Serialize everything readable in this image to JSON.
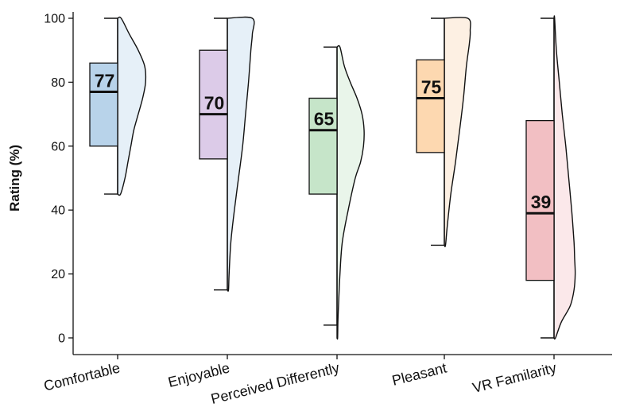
{
  "chart_data": {
    "type": "raincloud",
    "title": "",
    "xlabel": "",
    "ylabel": "Rating (%)",
    "ylim": [
      0,
      100
    ],
    "yticks": [
      0,
      20,
      40,
      60,
      80,
      100
    ],
    "grid": false,
    "legend": "none",
    "categories": [
      {
        "name": "Comfortable",
        "box_color": "#b8d3ea",
        "violin_color": "#e6f0f8",
        "stats": {
          "min": 45,
          "q1": 60,
          "median": 77,
          "q3": 86,
          "max": 100
        },
        "median_label": "77",
        "density": [
          [
            45,
            0.1
          ],
          [
            50,
            0.25
          ],
          [
            55,
            0.35
          ],
          [
            60,
            0.45
          ],
          [
            65,
            0.55
          ],
          [
            70,
            0.7
          ],
          [
            75,
            0.85
          ],
          [
            80,
            0.95
          ],
          [
            85,
            0.92
          ],
          [
            90,
            0.7
          ],
          [
            95,
            0.4
          ],
          [
            100,
            0.12
          ]
        ]
      },
      {
        "name": "Enjoyable",
        "box_color": "#dccbe8",
        "violin_color": "#e6f0f8",
        "stats": {
          "min": 15,
          "q1": 56,
          "median": 70,
          "q3": 90,
          "max": 100
        },
        "median_label": "70",
        "density": [
          [
            15,
            0.04
          ],
          [
            20,
            0.06
          ],
          [
            30,
            0.12
          ],
          [
            40,
            0.24
          ],
          [
            50,
            0.38
          ],
          [
            60,
            0.52
          ],
          [
            70,
            0.62
          ],
          [
            80,
            0.72
          ],
          [
            90,
            0.8
          ],
          [
            95,
            0.85
          ],
          [
            100,
            0.85
          ]
        ]
      },
      {
        "name": "Perceived Differently",
        "box_color": "#c6e5c9",
        "violin_color": "#e9f5ea",
        "stats": {
          "min": 4,
          "q1": 45,
          "median": 65,
          "q3": 75,
          "max": 91
        },
        "median_label": "65",
        "density": [
          [
            0,
            0.02
          ],
          [
            5,
            0.03
          ],
          [
            10,
            0.05
          ],
          [
            20,
            0.1
          ],
          [
            30,
            0.18
          ],
          [
            40,
            0.38
          ],
          [
            50,
            0.62
          ],
          [
            55,
            0.8
          ],
          [
            60,
            0.9
          ],
          [
            65,
            0.92
          ],
          [
            70,
            0.85
          ],
          [
            75,
            0.68
          ],
          [
            80,
            0.45
          ],
          [
            85,
            0.25
          ],
          [
            91,
            0.1
          ]
        ]
      },
      {
        "name": "Pleasant",
        "box_color": "#fdd8b0",
        "violin_color": "#fdf0e3",
        "stats": {
          "min": 29,
          "q1": 58,
          "median": 75,
          "q3": 87,
          "max": 100
        },
        "median_label": "75",
        "density": [
          [
            29,
            0.04
          ],
          [
            35,
            0.1
          ],
          [
            45,
            0.22
          ],
          [
            55,
            0.38
          ],
          [
            65,
            0.52
          ],
          [
            75,
            0.65
          ],
          [
            85,
            0.75
          ],
          [
            92,
            0.85
          ],
          [
            96,
            0.88
          ],
          [
            100,
            0.8
          ]
        ]
      },
      {
        "name": "VR Familarity",
        "box_color": "#f2bfc3",
        "violin_color": "#fbe8ea",
        "stats": {
          "min": 0,
          "q1": 18,
          "median": 39,
          "q3": 68,
          "max": 100
        },
        "median_label": "39",
        "density": [
          [
            0,
            0.05
          ],
          [
            5,
            0.25
          ],
          [
            10,
            0.55
          ],
          [
            15,
            0.68
          ],
          [
            20,
            0.72
          ],
          [
            25,
            0.7
          ],
          [
            30,
            0.68
          ],
          [
            40,
            0.6
          ],
          [
            50,
            0.5
          ],
          [
            60,
            0.4
          ],
          [
            70,
            0.28
          ],
          [
            80,
            0.18
          ],
          [
            90,
            0.08
          ],
          [
            100,
            0.02
          ]
        ]
      }
    ]
  }
}
